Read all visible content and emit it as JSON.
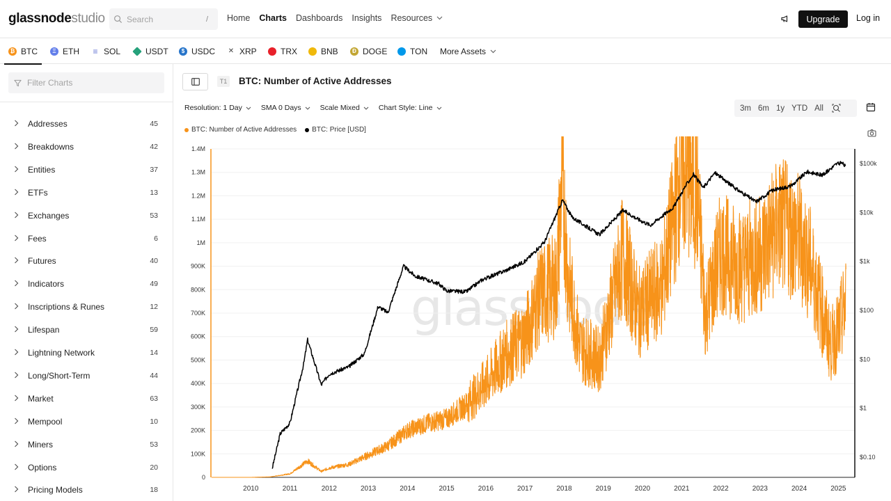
{
  "logo": {
    "bold": "glassnode",
    "light": "studio"
  },
  "search": {
    "placeholder": "Search",
    "shortcut": "/"
  },
  "nav": {
    "home": "Home",
    "charts": "Charts",
    "dashboards": "Dashboards",
    "insights": "Insights",
    "resources": "Resources"
  },
  "header_actions": {
    "upgrade": "Upgrade",
    "login": "Log in"
  },
  "assets": [
    {
      "label": "BTC",
      "color": "#f7931a",
      "glyph": "₿"
    },
    {
      "label": "ETH",
      "color": "#627eea",
      "glyph": "Ξ"
    },
    {
      "label": "SOL",
      "color": "#6b7bd6",
      "glyph": "≡"
    },
    {
      "label": "USDT",
      "color": "#26a17b",
      "glyph": ""
    },
    {
      "label": "USDC",
      "color": "#2775ca",
      "glyph": "$"
    },
    {
      "label": "XRP",
      "color": "#444444",
      "glyph": "✕"
    },
    {
      "label": "TRX",
      "color": "#e8202a",
      "glyph": ""
    },
    {
      "label": "BNB",
      "color": "#f0b90b",
      "glyph": ""
    },
    {
      "label": "DOGE",
      "color": "#c2a633",
      "glyph": "Ð"
    },
    {
      "label": "TON",
      "color": "#0098ea",
      "glyph": ""
    }
  ],
  "more_assets": "More Assets",
  "sidebar": {
    "filter_placeholder": "Filter Charts",
    "categories": [
      {
        "label": "Addresses",
        "count": "45"
      },
      {
        "label": "Breakdowns",
        "count": "42"
      },
      {
        "label": "Entities",
        "count": "37"
      },
      {
        "label": "ETFs",
        "count": "13"
      },
      {
        "label": "Exchanges",
        "count": "53"
      },
      {
        "label": "Fees",
        "count": "6"
      },
      {
        "label": "Futures",
        "count": "40"
      },
      {
        "label": "Indicators",
        "count": "49"
      },
      {
        "label": "Inscriptions & Runes",
        "count": "12"
      },
      {
        "label": "Lifespan",
        "count": "59"
      },
      {
        "label": "Lightning Network",
        "count": "14"
      },
      {
        "label": "Long/Short-Term",
        "count": "44"
      },
      {
        "label": "Market",
        "count": "63"
      },
      {
        "label": "Mempool",
        "count": "10"
      },
      {
        "label": "Miners",
        "count": "53"
      },
      {
        "label": "Options",
        "count": "20"
      },
      {
        "label": "Pricing Models",
        "count": "18"
      }
    ]
  },
  "chart_header": {
    "tier": "T1",
    "title": "BTC: Number of Active Addresses",
    "resolution": "Resolution: 1 Day",
    "sma": "SMA 0 Days",
    "scale": "Scale Mixed",
    "style": "Chart Style: Line",
    "ranges": [
      "3m",
      "6m",
      "1y",
      "YTD",
      "All"
    ]
  },
  "chart_data": {
    "type": "line",
    "title": "BTC: Number of Active Addresses",
    "series": [
      {
        "name": "BTC: Number of Active Addresses",
        "color": "#f7931a",
        "axis": "left",
        "points": [
          [
            2009.0,
            0
          ],
          [
            2010.0,
            0
          ],
          [
            2010.5,
            2000
          ],
          [
            2011.0,
            15000
          ],
          [
            2011.45,
            70000
          ],
          [
            2011.8,
            25000
          ],
          [
            2012.0,
            40000
          ],
          [
            2012.5,
            55000
          ],
          [
            2013.0,
            95000
          ],
          [
            2013.5,
            135000
          ],
          [
            2014.0,
            200000
          ],
          [
            2014.5,
            230000
          ],
          [
            2015.0,
            250000
          ],
          [
            2015.5,
            310000
          ],
          [
            2016.0,
            400000
          ],
          [
            2016.5,
            520000
          ],
          [
            2017.0,
            600000
          ],
          [
            2017.4,
            780000
          ],
          [
            2017.8,
            820000
          ],
          [
            2017.95,
            1280000
          ],
          [
            2018.1,
            850000
          ],
          [
            2018.4,
            560000
          ],
          [
            2018.9,
            500000
          ],
          [
            2019.5,
            950000
          ],
          [
            2019.9,
            700000
          ],
          [
            2020.5,
            820000
          ],
          [
            2021.0,
            1300000
          ],
          [
            2021.4,
            1200000
          ],
          [
            2021.6,
            700000
          ],
          [
            2022.0,
            960000
          ],
          [
            2022.5,
            900000
          ],
          [
            2023.0,
            950000
          ],
          [
            2023.5,
            1080000
          ],
          [
            2024.0,
            1020000
          ],
          [
            2024.3,
            900000
          ],
          [
            2024.8,
            560000
          ],
          [
            2025.0,
            620000
          ],
          [
            2025.2,
            750000
          ]
        ]
      },
      {
        "name": "BTC: Price [USD]",
        "color": "#000000",
        "axis": "right",
        "points": [
          [
            2010.55,
            0.06
          ],
          [
            2010.75,
            0.3
          ],
          [
            2011.0,
            0.5
          ],
          [
            2011.35,
            8
          ],
          [
            2011.45,
            25
          ],
          [
            2011.8,
            3
          ],
          [
            2012.0,
            5
          ],
          [
            2012.5,
            7
          ],
          [
            2012.9,
            13
          ],
          [
            2013.25,
            120
          ],
          [
            2013.5,
            90
          ],
          [
            2013.9,
            800
          ],
          [
            2014.2,
            500
          ],
          [
            2014.8,
            350
          ],
          [
            2015.0,
            250
          ],
          [
            2015.5,
            240
          ],
          [
            2015.9,
            420
          ],
          [
            2016.5,
            650
          ],
          [
            2017.0,
            1000
          ],
          [
            2017.5,
            2500
          ],
          [
            2017.96,
            18000
          ],
          [
            2018.2,
            8000
          ],
          [
            2018.9,
            3500
          ],
          [
            2019.5,
            11000
          ],
          [
            2019.9,
            7200
          ],
          [
            2020.2,
            5500
          ],
          [
            2020.8,
            13000
          ],
          [
            2021.1,
            35000
          ],
          [
            2021.3,
            60000
          ],
          [
            2021.55,
            32000
          ],
          [
            2021.85,
            65000
          ],
          [
            2022.4,
            30000
          ],
          [
            2022.9,
            16500
          ],
          [
            2023.3,
            28000
          ],
          [
            2023.8,
            35000
          ],
          [
            2024.2,
            68000
          ],
          [
            2024.6,
            58000
          ],
          [
            2024.95,
            98000
          ],
          [
            2025.1,
            102000
          ],
          [
            2025.2,
            84000
          ]
        ]
      }
    ],
    "x_ticks": [
      "2010",
      "2011",
      "2012",
      "2013",
      "2014",
      "2015",
      "2016",
      "2017",
      "2018",
      "2019",
      "2020",
      "2021",
      "2022",
      "2023",
      "2024",
      "2025"
    ],
    "y_left_ticks": [
      "0",
      "100K",
      "200K",
      "300K",
      "400K",
      "500K",
      "600K",
      "700K",
      "800K",
      "900K",
      "1M",
      "1.1M",
      "1.2M",
      "1.3M",
      "1.4M"
    ],
    "y_right_ticks": [
      "$0.10",
      "$1",
      "$10",
      "$100",
      "$1k",
      "$10k",
      "$100k"
    ],
    "y_left_range": [
      0,
      1400000
    ],
    "y_right_scale": "log",
    "watermark": "glassnode"
  }
}
